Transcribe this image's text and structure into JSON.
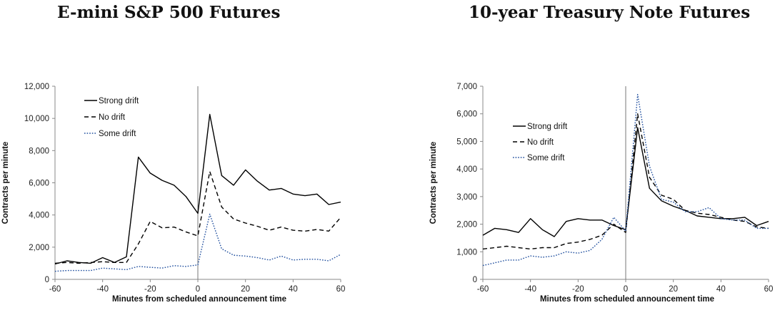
{
  "colors": {
    "strong": "#000000",
    "no": "#000000",
    "some": "#1f4e9e"
  },
  "chart_data": [
    {
      "type": "line",
      "title": "E-mini S&P 500 Futures",
      "xlabel": "Minutes from scheduled announcement time",
      "ylabel": "Contracts per minute",
      "xlim": [
        -60,
        60
      ],
      "ylim": [
        0,
        12000
      ],
      "xticks": [
        "-60",
        "-40",
        "-20",
        "0",
        "20",
        "40",
        "60"
      ],
      "yticks": [
        "0",
        "2,000",
        "4,000",
        "6,000",
        "8,000",
        "10,000",
        "12,000"
      ],
      "legend_position": "top-left",
      "x": [
        -60,
        -55,
        -50,
        -45,
        -40,
        -35,
        -30,
        -25,
        -20,
        -15,
        -10,
        -5,
        0,
        5,
        10,
        15,
        20,
        25,
        30,
        35,
        40,
        45,
        50,
        55,
        60
      ],
      "series": [
        {
          "name": "Strong drift",
          "style": "solid",
          "values": [
            950,
            1150,
            1050,
            1000,
            1350,
            1050,
            1400,
            7600,
            6600,
            6150,
            5850,
            5150,
            4100,
            10250,
            6450,
            5850,
            6800,
            6100,
            5550,
            5650,
            5300,
            5200,
            5300,
            4650,
            4800
          ]
        },
        {
          "name": "No drift",
          "style": "dashed",
          "values": [
            1000,
            1050,
            1000,
            1050,
            1100,
            1050,
            1050,
            2200,
            3600,
            3200,
            3250,
            2950,
            2700,
            6700,
            4500,
            3750,
            3500,
            3300,
            3050,
            3250,
            3050,
            3000,
            3100,
            3000,
            3850
          ]
        },
        {
          "name": "Some drift",
          "style": "dotted",
          "values": [
            500,
            550,
            550,
            550,
            700,
            650,
            600,
            800,
            750,
            700,
            850,
            800,
            900,
            4050,
            1900,
            1500,
            1450,
            1350,
            1200,
            1450,
            1200,
            1250,
            1250,
            1150,
            1550
          ]
        }
      ]
    },
    {
      "type": "line",
      "title": "10-year Treasury Note Futures",
      "xlabel": "Minutes from scheduled announcement time",
      "ylabel": "Contracts per minute",
      "xlim": [
        -60,
        60
      ],
      "ylim": [
        0,
        7000
      ],
      "xticks": [
        "-60",
        "-40",
        "-20",
        "0",
        "20",
        "40",
        "60"
      ],
      "yticks": [
        "0",
        "1,000",
        "2,000",
        "3,000",
        "4,000",
        "5,000",
        "6,000",
        "7,000"
      ],
      "legend_position": "top-left",
      "x": [
        -60,
        -55,
        -50,
        -45,
        -40,
        -35,
        -30,
        -25,
        -20,
        -15,
        -10,
        -5,
        0,
        5,
        10,
        15,
        20,
        25,
        30,
        35,
        40,
        45,
        50,
        55,
        60
      ],
      "series": [
        {
          "name": "Strong drift",
          "style": "solid",
          "values": [
            1600,
            1850,
            1800,
            1700,
            2200,
            1800,
            1550,
            2100,
            2200,
            2150,
            2150,
            1950,
            1800,
            5500,
            3300,
            2850,
            2650,
            2500,
            2300,
            2250,
            2200,
            2200,
            2250,
            1950,
            2100
          ]
        },
        {
          "name": "No drift",
          "style": "dashed",
          "values": [
            1100,
            1150,
            1200,
            1150,
            1100,
            1150,
            1150,
            1300,
            1350,
            1450,
            1600,
            2000,
            1700,
            6000,
            3700,
            3050,
            2900,
            2500,
            2400,
            2350,
            2250,
            2150,
            2100,
            1900,
            1850
          ]
        },
        {
          "name": "Some drift",
          "style": "dotted",
          "values": [
            500,
            600,
            700,
            700,
            850,
            800,
            850,
            1000,
            950,
            1050,
            1450,
            2250,
            1750,
            6700,
            4100,
            2900,
            2800,
            2450,
            2450,
            2600,
            2200,
            2150,
            2150,
            1850,
            1850
          ]
        }
      ]
    }
  ]
}
